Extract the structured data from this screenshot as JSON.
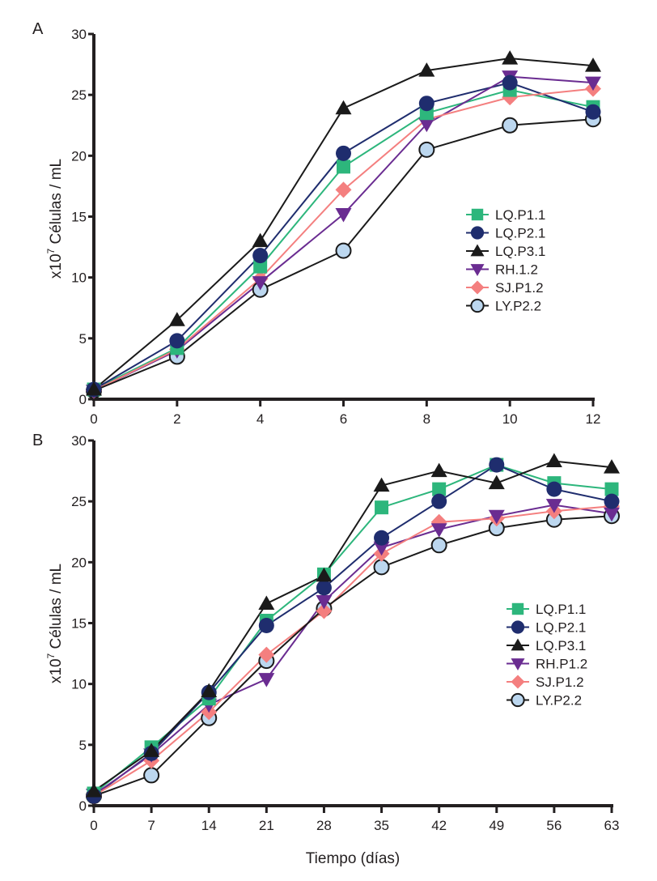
{
  "chart_data": [
    {
      "type": "line",
      "panel": "A",
      "title": "",
      "xlabel": "",
      "ylabel": "x10^7 Células / mL",
      "ylabel_parts": {
        "prefix": "x10",
        "sup": "7",
        "suffix": " Células / mL"
      },
      "xlim": [
        0,
        12
      ],
      "ylim": [
        0,
        30
      ],
      "xticks": [
        0,
        2,
        4,
        6,
        8,
        10,
        12
      ],
      "yticks": [
        0,
        5,
        10,
        15,
        20,
        25,
        30
      ],
      "grid": false,
      "legend_position": "center-right",
      "x": [
        0,
        2,
        4,
        6,
        8,
        10,
        12
      ],
      "series": [
        {
          "name": "LQ.P1.1",
          "marker": "square",
          "color": "#2db67c",
          "values": [
            0.8,
            4.2,
            10.9,
            19.1,
            23.5,
            25.4,
            24.0
          ]
        },
        {
          "name": "LQ.P2.1",
          "marker": "circle",
          "color": "#1f2d6e",
          "values": [
            0.8,
            4.8,
            11.8,
            20.2,
            24.3,
            26.0,
            23.6
          ]
        },
        {
          "name": "LQ.P3.1",
          "marker": "triangle-up",
          "color": "#1a1a1a",
          "values": [
            0.8,
            6.5,
            13.0,
            23.9,
            27.0,
            28.0,
            27.4
          ]
        },
        {
          "name": "RH.1.2",
          "marker": "triangle-down",
          "color": "#6a2c91",
          "values": [
            0.7,
            4.0,
            9.6,
            15.2,
            22.6,
            26.5,
            26.0
          ]
        },
        {
          "name": "SJ.P1.2",
          "marker": "diamond",
          "color": "#f47f7f",
          "values": [
            0.7,
            4.1,
            9.9,
            17.2,
            23.0,
            24.8,
            25.5
          ]
        },
        {
          "name": "LY.P2.2",
          "marker": "circle-open",
          "color": "#bcd7ef",
          "values": [
            0.7,
            3.5,
            9.0,
            12.2,
            20.5,
            22.5,
            23.0
          ]
        }
      ]
    },
    {
      "type": "line",
      "panel": "B",
      "title": "",
      "xlabel": "Tiempo (días)",
      "ylabel": "x10^7 Células / mL",
      "ylabel_parts": {
        "prefix": "x10",
        "sup": "7",
        "suffix": " Células / mL"
      },
      "xlim": [
        0,
        63
      ],
      "ylim": [
        0,
        30
      ],
      "xticks": [
        0,
        7,
        14,
        21,
        28,
        35,
        42,
        49,
        56,
        63
      ],
      "yticks": [
        0,
        5,
        10,
        15,
        20,
        25,
        30
      ],
      "grid": false,
      "legend_position": "center-right",
      "x": [
        0,
        7,
        14,
        21,
        28,
        35,
        42,
        49,
        56,
        63
      ],
      "series": [
        {
          "name": "LQ.P1.1",
          "marker": "square",
          "color": "#2db67c",
          "values": [
            1.0,
            4.8,
            8.8,
            15.2,
            19.0,
            24.5,
            26.0,
            28.0,
            26.5,
            26.0
          ]
        },
        {
          "name": "LQ.P2.1",
          "marker": "circle",
          "color": "#1f2d6e",
          "values": [
            0.8,
            4.3,
            9.3,
            14.8,
            17.9,
            22.0,
            25.0,
            28.0,
            26.0,
            25.0
          ]
        },
        {
          "name": "LQ.P3.1",
          "marker": "triangle-up",
          "color": "#1a1a1a",
          "values": [
            1.2,
            4.5,
            9.4,
            16.6,
            18.9,
            26.3,
            27.5,
            26.5,
            28.3,
            27.8
          ]
        },
        {
          "name": "RH.P1.2",
          "marker": "triangle-down",
          "color": "#6a2c91",
          "values": [
            0.9,
            4.2,
            8.3,
            10.4,
            16.8,
            21.2,
            22.7,
            23.8,
            24.7,
            24.0
          ]
        },
        {
          "name": "SJ.P1.2",
          "marker": "diamond",
          "color": "#f47f7f",
          "values": [
            0.8,
            3.7,
            7.7,
            12.4,
            16.0,
            20.7,
            23.3,
            23.6,
            24.2,
            24.6
          ]
        },
        {
          "name": "LY.P2.2",
          "marker": "circle-open",
          "color": "#bcd7ef",
          "values": [
            0.8,
            2.5,
            7.2,
            11.9,
            16.2,
            19.6,
            21.4,
            22.8,
            23.5,
            23.8
          ]
        }
      ]
    }
  ]
}
